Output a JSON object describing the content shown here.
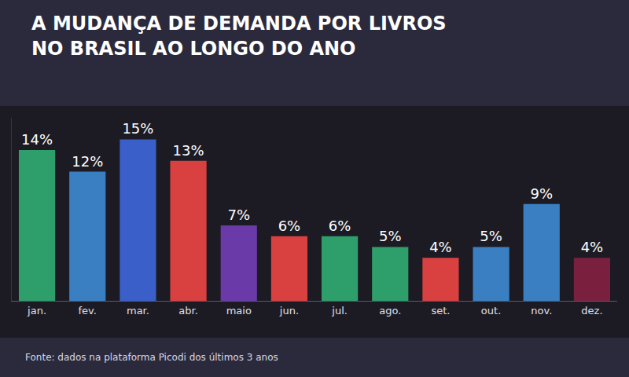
{
  "chart_data": {
    "type": "bar",
    "title": "A MUDANÇA DE DEMANDA POR LIVROS NO BRASIL AO LONGO DO ANO",
    "categories": [
      "jan.",
      "fev.",
      "mar.",
      "abr.",
      "maio",
      "jun.",
      "jul.",
      "ago.",
      "set.",
      "out.",
      "nov.",
      "dez."
    ],
    "values": [
      14,
      12,
      15,
      13,
      7,
      6,
      6,
      5,
      4,
      5,
      9,
      4
    ],
    "value_labels": [
      "14%",
      "12%",
      "15%",
      "13%",
      "7%",
      "6%",
      "6%",
      "5%",
      "4%",
      "5%",
      "9%",
      "4%"
    ],
    "colors": [
      "#2e9e6a",
      "#3a7fc1",
      "#3a5fc8",
      "#d94040",
      "#6a3aa8",
      "#d94040",
      "#2e9e6a",
      "#2e9e6a",
      "#d94040",
      "#3a7fc1",
      "#3a7fc1",
      "#7a1f3d"
    ],
    "ylim": [
      0,
      17
    ],
    "data_labels": true,
    "tick_labels": "x",
    "grid": false,
    "source": "Fonte: dados na plataforma Picodi dos últimos 3 anos"
  }
}
